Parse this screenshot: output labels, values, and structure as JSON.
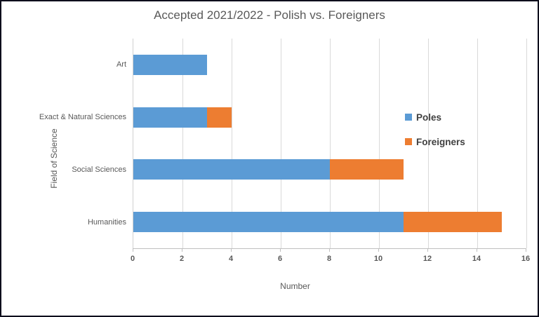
{
  "chart_data": {
    "type": "bar",
    "orientation": "horizontal",
    "stacked": true,
    "title": "Accepted 2021/2022 - Polish vs. Foreigners",
    "xlabel": "Number",
    "ylabel": "Field of Science",
    "categories": [
      "Art",
      "Exact & Natural Sciences",
      "Social Sciences",
      "Humanities"
    ],
    "series": [
      {
        "name": "Poles",
        "color": "#5B9BD5",
        "values": [
          3,
          3,
          8,
          11
        ]
      },
      {
        "name": "Foreigners",
        "color": "#ED7D31",
        "values": [
          0,
          1,
          3,
          4
        ]
      }
    ],
    "totals": [
      3,
      4,
      11,
      15
    ],
    "xlim": [
      0,
      16
    ],
    "xticks": [
      0,
      2,
      4,
      6,
      8,
      10,
      12,
      14,
      16
    ],
    "grid": true,
    "legend_position": "inside-right"
  },
  "style": {
    "bar_blue": "#5B9BD5",
    "bar_orange": "#ED7D31",
    "gridline_color": "#D9D9D9",
    "axis_line_color": "#BFBFBF",
    "text_color": "#595959",
    "legend_text_color": "#404040",
    "frame_border_color": "#0E0E1C",
    "background": "#FFFFFF"
  }
}
